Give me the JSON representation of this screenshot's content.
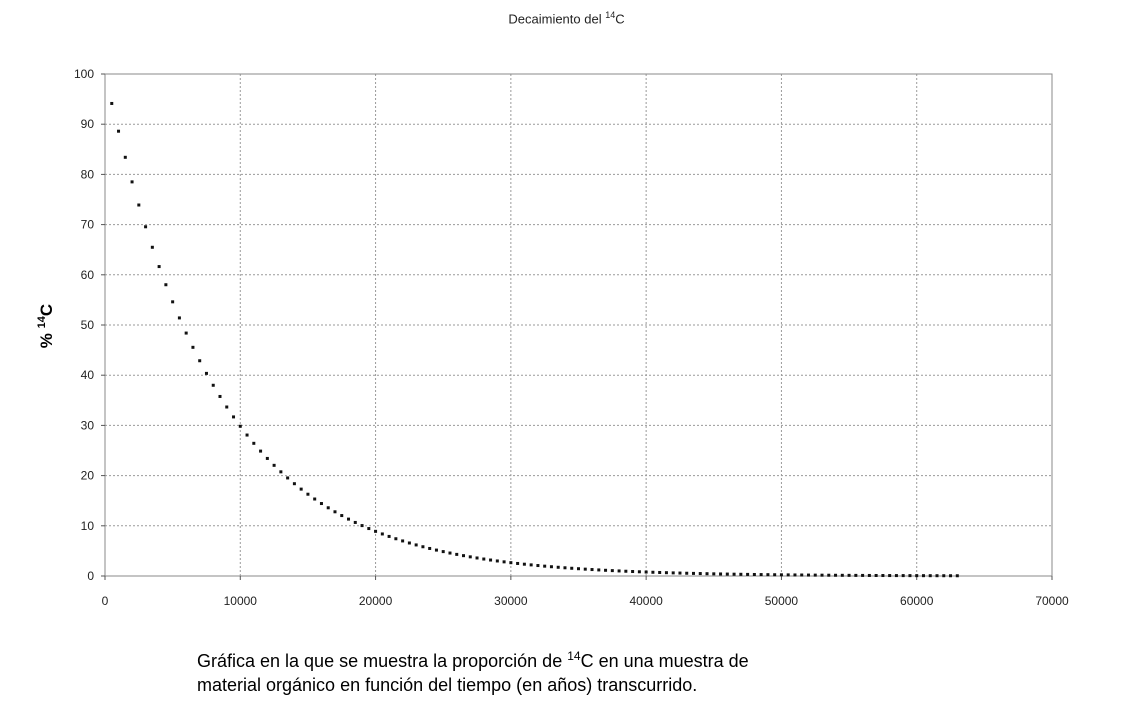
{
  "chart_data": {
    "type": "scatter",
    "title": {
      "prefix": "Decaimiento del ",
      "sup": "14",
      "suffix": "C"
    },
    "xlabel": "",
    "ylabel": {
      "prefix": "% ",
      "sup": "14",
      "suffix": "C"
    },
    "xlim": [
      0,
      70000
    ],
    "ylim": [
      0,
      100
    ],
    "xticks": [
      0,
      10000,
      20000,
      30000,
      40000,
      50000,
      60000,
      70000
    ],
    "yticks": [
      0,
      10,
      20,
      30,
      40,
      50,
      60,
      70,
      80,
      90,
      100
    ],
    "grid": true,
    "legend": "none",
    "half_life_years": 5730,
    "x_start": 500,
    "x_step": 500,
    "x_end": 63000,
    "marker_color": "#111111"
  },
  "caption": {
    "part1": "Gráfica en la que se muestra la proporción de ",
    "sup": "14",
    "part2": "C en una muestra de",
    "line2": "material orgánico en función del tiempo (en años) transcurrido."
  }
}
